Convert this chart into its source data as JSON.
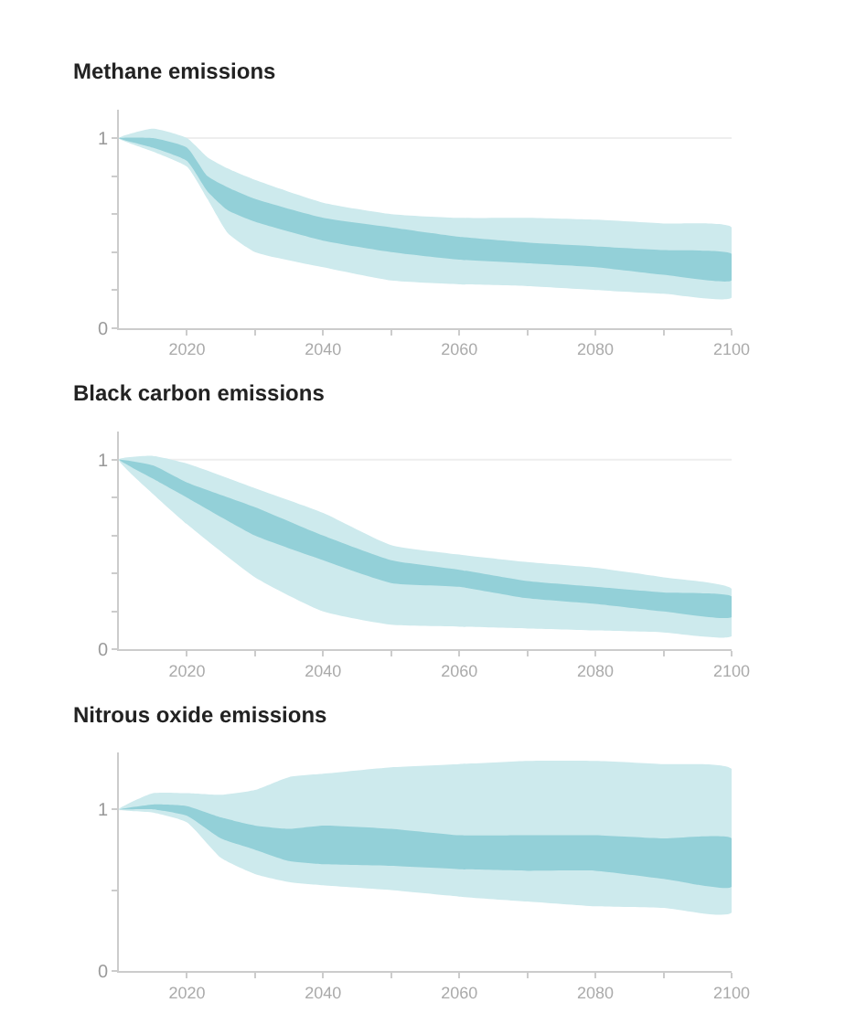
{
  "chart_data": [
    {
      "type": "area",
      "title": "Methane emissions",
      "x": [
        2010,
        2015,
        2020,
        2023,
        2026,
        2030,
        2040,
        2050,
        2060,
        2070,
        2080,
        2090,
        2100
      ],
      "series": [
        {
          "color": "#cdeaed",
          "values": [
            null,
            null,
            null,
            null,
            null,
            null,
            null,
            null,
            null,
            null,
            null,
            null,
            null
          ],
          "upper": [
            1.0,
            1.05,
            1.0,
            0.9,
            0.84,
            0.78,
            0.66,
            0.6,
            0.58,
            0.58,
            0.57,
            0.55,
            0.53
          ],
          "lower": [
            1.0,
            0.93,
            0.85,
            0.68,
            0.5,
            0.4,
            0.32,
            0.25,
            0.23,
            0.22,
            0.2,
            0.18,
            0.16
          ]
        },
        {
          "color": "#93d0d8",
          "values": [
            null,
            null,
            null,
            null,
            null,
            null,
            null,
            null,
            null,
            null,
            null,
            null,
            null
          ],
          "upper": [
            1.0,
            1.0,
            0.95,
            0.8,
            0.74,
            0.68,
            0.58,
            0.53,
            0.48,
            0.45,
            0.43,
            0.41,
            0.39
          ],
          "lower": [
            1.0,
            0.95,
            0.88,
            0.72,
            0.62,
            0.56,
            0.46,
            0.4,
            0.36,
            0.34,
            0.32,
            0.28,
            0.25
          ]
        }
      ],
      "xlim": [
        2010,
        2100
      ],
      "xticks": [
        2020,
        {
          "value": 2030,
          "label": null
        },
        2040,
        {
          "value": 2050,
          "label": null
        },
        2060,
        {
          "value": 2070,
          "label": null
        },
        2080,
        {
          "value": 2090,
          "label": null
        },
        2100
      ],
      "ylim": [
        0,
        1.15
      ],
      "yticks": [
        0,
        {
          "value": 0.2,
          "label": null
        },
        {
          "value": 0.4,
          "label": null
        },
        {
          "value": 0.6,
          "label": null
        },
        {
          "value": 0.8,
          "label": null
        },
        1
      ],
      "ref_lines": [
        {
          "axis": "y",
          "value": 1,
          "color": "#eeeeee"
        }
      ]
    },
    {
      "type": "area",
      "title": "Black carbon emissions",
      "x": [
        2010,
        2015,
        2020,
        2030,
        2040,
        2050,
        2060,
        2070,
        2080,
        2090,
        2100
      ],
      "series": [
        {
          "color": "#cdeaed",
          "values": [
            null,
            null,
            null,
            null,
            null,
            null,
            null,
            null,
            null,
            null,
            null
          ],
          "upper": [
            1.0,
            1.02,
            0.98,
            0.85,
            0.72,
            0.55,
            0.5,
            0.46,
            0.43,
            0.38,
            0.32
          ],
          "lower": [
            1.0,
            0.82,
            0.66,
            0.38,
            0.2,
            0.13,
            0.12,
            0.11,
            0.1,
            0.09,
            0.07
          ]
        },
        {
          "color": "#93d0d8",
          "values": [
            null,
            null,
            null,
            null,
            null,
            null,
            null,
            null,
            null,
            null,
            null
          ],
          "upper": [
            1.0,
            0.97,
            0.88,
            0.75,
            0.6,
            0.47,
            0.42,
            0.36,
            0.33,
            0.3,
            0.28
          ],
          "lower": [
            1.0,
            0.9,
            0.8,
            0.6,
            0.47,
            0.35,
            0.33,
            0.27,
            0.24,
            0.2,
            0.17
          ]
        }
      ],
      "xlim": [
        2010,
        2100
      ],
      "xticks": [
        2020,
        {
          "value": 2030,
          "label": null
        },
        2040,
        {
          "value": 2050,
          "label": null
        },
        2060,
        {
          "value": 2070,
          "label": null
        },
        2080,
        {
          "value": 2090,
          "label": null
        },
        2100
      ],
      "ylim": [
        0,
        1.15
      ],
      "yticks": [
        0,
        {
          "value": 0.2,
          "label": null
        },
        {
          "value": 0.4,
          "label": null
        },
        {
          "value": 0.6,
          "label": null
        },
        {
          "value": 0.8,
          "label": null
        },
        1
      ],
      "ref_lines": [
        {
          "axis": "y",
          "value": 1,
          "color": "#eeeeee"
        }
      ]
    },
    {
      "type": "area",
      "title": "Nitrous oxide emissions",
      "x": [
        2010,
        2015,
        2020,
        2025,
        2030,
        2035,
        2040,
        2050,
        2060,
        2070,
        2080,
        2090,
        2100
      ],
      "series": [
        {
          "color": "#cdeaed",
          "values": [
            null,
            null,
            null,
            null,
            null,
            null,
            null,
            null,
            null,
            null,
            null,
            null,
            null
          ],
          "upper": [
            1.0,
            1.1,
            1.1,
            1.09,
            1.12,
            1.2,
            1.22,
            1.26,
            1.28,
            1.3,
            1.3,
            1.28,
            1.25
          ],
          "lower": [
            1.0,
            0.98,
            0.92,
            0.7,
            0.6,
            0.55,
            0.53,
            0.5,
            0.46,
            0.43,
            0.4,
            0.39,
            0.36
          ]
        },
        {
          "color": "#93d0d8",
          "values": [
            null,
            null,
            null,
            null,
            null,
            null,
            null,
            null,
            null,
            null,
            null,
            null,
            null
          ],
          "upper": [
            1.0,
            1.03,
            1.02,
            0.95,
            0.9,
            0.88,
            0.9,
            0.88,
            0.84,
            0.84,
            0.84,
            0.82,
            0.82
          ],
          "lower": [
            1.0,
            1.0,
            0.96,
            0.82,
            0.75,
            0.68,
            0.66,
            0.65,
            0.63,
            0.62,
            0.62,
            0.57,
            0.52
          ]
        }
      ],
      "xlim": [
        2010,
        2100
      ],
      "xticks": [
        2020,
        {
          "value": 2030,
          "label": null
        },
        2040,
        {
          "value": 2050,
          "label": null
        },
        2060,
        {
          "value": 2070,
          "label": null
        },
        2080,
        {
          "value": 2090,
          "label": null
        },
        2100
      ],
      "ylim": [
        0,
        1.35
      ],
      "yticks": [
        0,
        {
          "value": 0.5,
          "label": null
        },
        1
      ],
      "ref_lines": [
        {
          "axis": "y",
          "value": 1,
          "color": "#eeeeee"
        }
      ]
    }
  ]
}
